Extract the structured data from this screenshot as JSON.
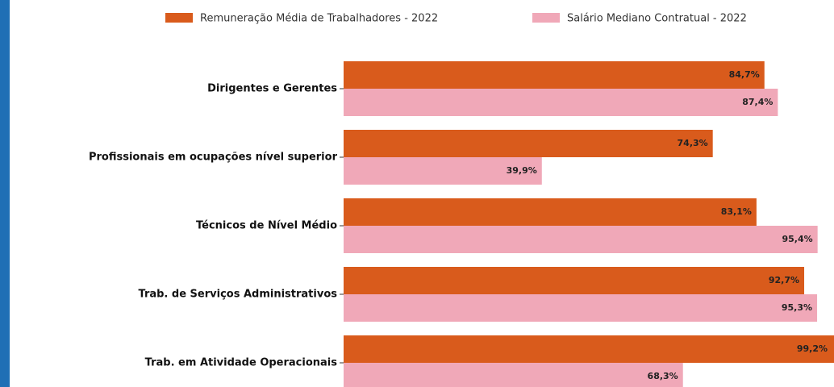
{
  "chart_data": {
    "type": "hbar_grouped",
    "categories": [
      "Dirigentes e Gerentes",
      "Profissionais em ocupações nível superior",
      "Técnicos de Nível Médio",
      "Trab. de Serviços Administrativos",
      "Trab. em Atividade Operacionais"
    ],
    "series": [
      {
        "name": "Remuneração Média de Trabalhadores - 2022",
        "color": "#d95b1c",
        "values": [
          84.7,
          74.3,
          83.1,
          92.7,
          99.2
        ],
        "value_labels": [
          "84,7%",
          "74,3%",
          "83,1%",
          "92,7%",
          "99,2%"
        ]
      },
      {
        "name": "Salário Mediano Contratual - 2022",
        "color": "#f0a8b8",
        "values": [
          87.4,
          39.9,
          95.4,
          95.3,
          68.3
        ],
        "value_labels": [
          "87,4%",
          "39,9%",
          "95,4%",
          "95,3%",
          "68,3%"
        ]
      }
    ],
    "xlim": [
      0,
      100
    ],
    "legend": "top"
  }
}
